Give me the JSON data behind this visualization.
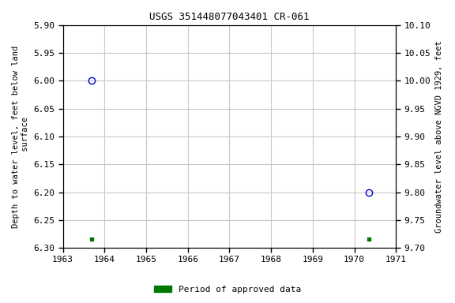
{
  "title": "USGS 351448077043401 CR-061",
  "ylabel_left": "Depth to water level, feet below land\n surface",
  "ylabel_right": "Groundwater level above NGVD 1929, feet",
  "xlim": [
    1963,
    1971
  ],
  "xticks": [
    1963,
    1964,
    1965,
    1966,
    1967,
    1968,
    1969,
    1970,
    1971
  ],
  "ylim_left": [
    6.3,
    5.9
  ],
  "ylim_right": [
    9.7,
    10.1
  ],
  "yticks_left": [
    5.9,
    5.95,
    6.0,
    6.05,
    6.1,
    6.15,
    6.2,
    6.25,
    6.3
  ],
  "yticks_right": [
    9.7,
    9.75,
    9.8,
    9.85,
    9.9,
    9.95,
    10.0,
    10.05,
    10.1
  ],
  "circle_points_x": [
    1963.7,
    1970.35
  ],
  "circle_points_y": [
    6.0,
    6.2
  ],
  "square_points_x": [
    1963.7,
    1970.35
  ],
  "square_points_y": [
    6.285,
    6.285
  ],
  "circle_color": "#0000cc",
  "square_color": "#007700",
  "legend_label": "Period of approved data",
  "bg_color": "#ffffff",
  "grid_color": "#c8c8c8",
  "title_fontsize": 9,
  "label_fontsize": 7.5,
  "tick_fontsize": 8
}
